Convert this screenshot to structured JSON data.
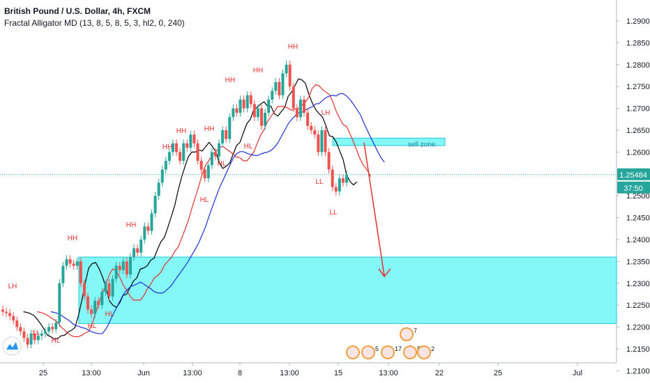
{
  "header": {
    "symbol": "British Pound / U.S. Dollar, 4h, FXCM",
    "indicator": "Fractal Alligator MD (13, 8, 5, 8, 5, 3, hl2, 0, 240)"
  },
  "colors": {
    "bull": "#26a69a",
    "bear": "#ef5350",
    "jaw": "#1e2fd6",
    "teeth": "#e3312f",
    "lips": "#000000",
    "zone": "#6ff6f6",
    "zone_border": "#22c6d0",
    "arrow": "#e3312f",
    "price_tag": "#26a69a"
  },
  "chart_data": {
    "type": "candlestick",
    "ylim": [
      1.21,
      1.29
    ],
    "yticks": [
      "1.29000",
      "1.28500",
      "1.28000",
      "1.27500",
      "1.27000",
      "1.26500",
      "1.26000",
      "1.25500",
      "1.25000",
      "1.24500",
      "1.24000",
      "1.23500",
      "1.23000",
      "1.22500",
      "1.22000",
      "1.21500",
      "1.21000"
    ],
    "xticks": [
      "25",
      "13:00",
      "Jun",
      "13:00",
      "8",
      "13:00",
      "15",
      "13:00",
      "22",
      "25",
      "Jul"
    ],
    "last_price": "1.25484",
    "countdown": "37:50",
    "zones": [
      {
        "label": "sell zone.",
        "from": 1.2615,
        "to": 1.2632
      },
      {
        "label": "",
        "from": 1.2208,
        "to": 1.236
      }
    ],
    "pivot_labels": [
      "LH",
      "LL",
      "HL",
      "HH",
      "HL",
      "HL",
      "HH",
      "HH",
      "HH",
      "HH",
      "HL",
      "HL",
      "HH",
      "HL",
      "HH",
      "HH",
      "LH",
      "LL",
      "LL"
    ],
    "event_badges": [
      "7",
      "5",
      "17",
      "5",
      "2"
    ]
  }
}
